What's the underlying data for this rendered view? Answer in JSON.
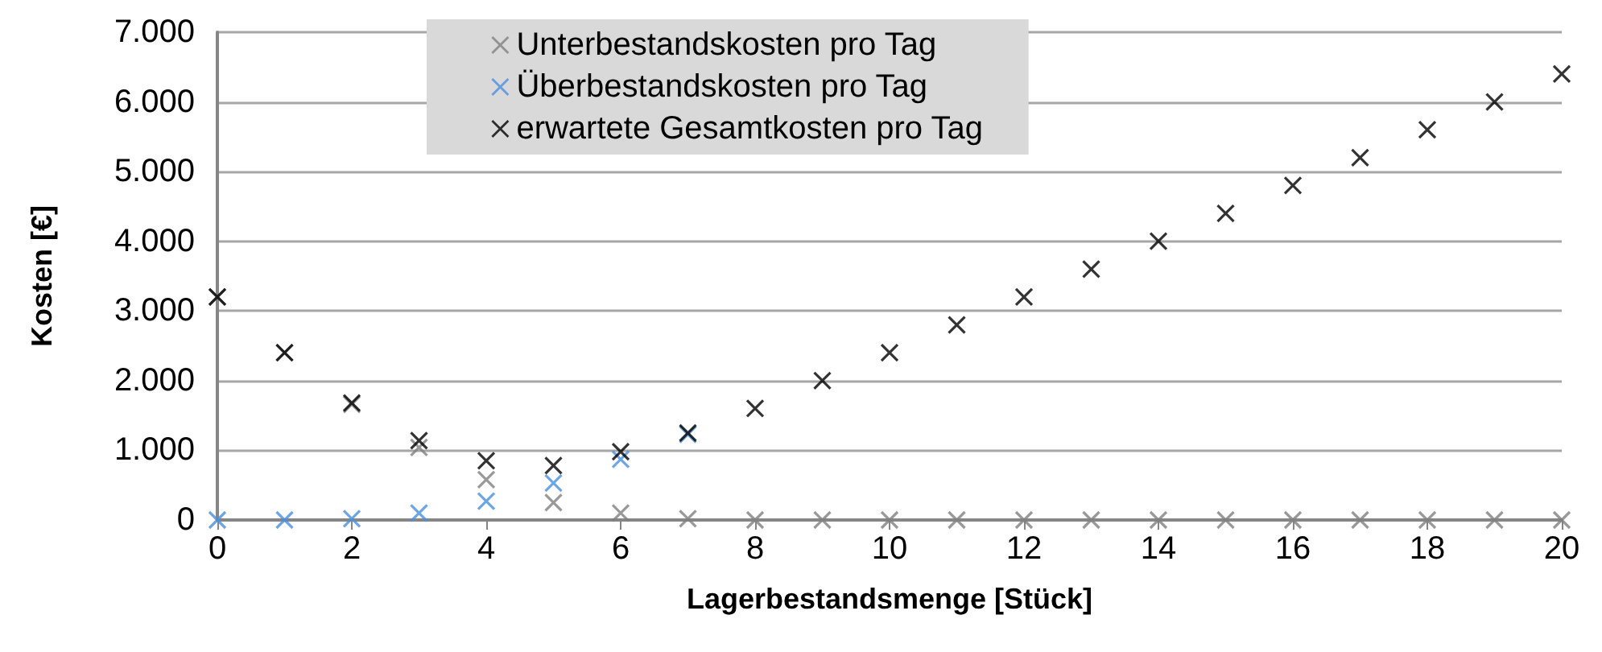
{
  "chart_data": {
    "type": "scatter",
    "xlabel": "Lagerbestandsmenge [Stück]",
    "ylabel": "Kosten [€]",
    "x": [
      0,
      1,
      2,
      3,
      4,
      5,
      6,
      7,
      8,
      9,
      10,
      11,
      12,
      13,
      14,
      15,
      16,
      17,
      18,
      19,
      20
    ],
    "series": [
      {
        "name": "Unterbestandskosten pro Tag",
        "color": "#7f7f7f",
        "values": [
          3200,
          2400,
          1660,
          1040,
          580,
          250,
          100,
          20,
          0,
          0,
          0,
          0,
          0,
          0,
          0,
          0,
          0,
          0,
          0,
          0,
          0
        ]
      },
      {
        "name": "Überbestandskosten pro Tag",
        "color": "#4a8fdf",
        "values": [
          0,
          0,
          20,
          100,
          270,
          530,
          870,
          1230,
          null,
          null,
          null,
          null,
          null,
          null,
          null,
          null,
          null,
          null,
          null,
          null,
          null
        ]
      },
      {
        "name": "erwartete Gesamtkosten pro Tag",
        "color": "#000000",
        "values": [
          3200,
          2400,
          1680,
          1140,
          850,
          780,
          980,
          1250,
          1600,
          2000,
          2400,
          2800,
          3200,
          3600,
          4000,
          4400,
          4800,
          5200,
          5600,
          6000,
          6400
        ]
      }
    ],
    "xlim": [
      0,
      20
    ],
    "xticks": [
      0,
      2,
      4,
      6,
      8,
      10,
      12,
      14,
      16,
      18,
      20
    ],
    "ylim": [
      0,
      7000
    ],
    "yticks": [
      0,
      {
        "value": 1000,
        "label": "1.000"
      },
      {
        "value": 2000,
        "label": "2.000"
      },
      {
        "value": 3000,
        "label": "3.000"
      },
      {
        "value": 4000,
        "label": "4.000"
      },
      {
        "value": 5000,
        "label": "5.000"
      },
      {
        "value": 6000,
        "label": "6.000"
      },
      {
        "value": 7000,
        "label": "7.000"
      }
    ],
    "grid": "y",
    "legend": "top",
    "marker": "cross"
  }
}
